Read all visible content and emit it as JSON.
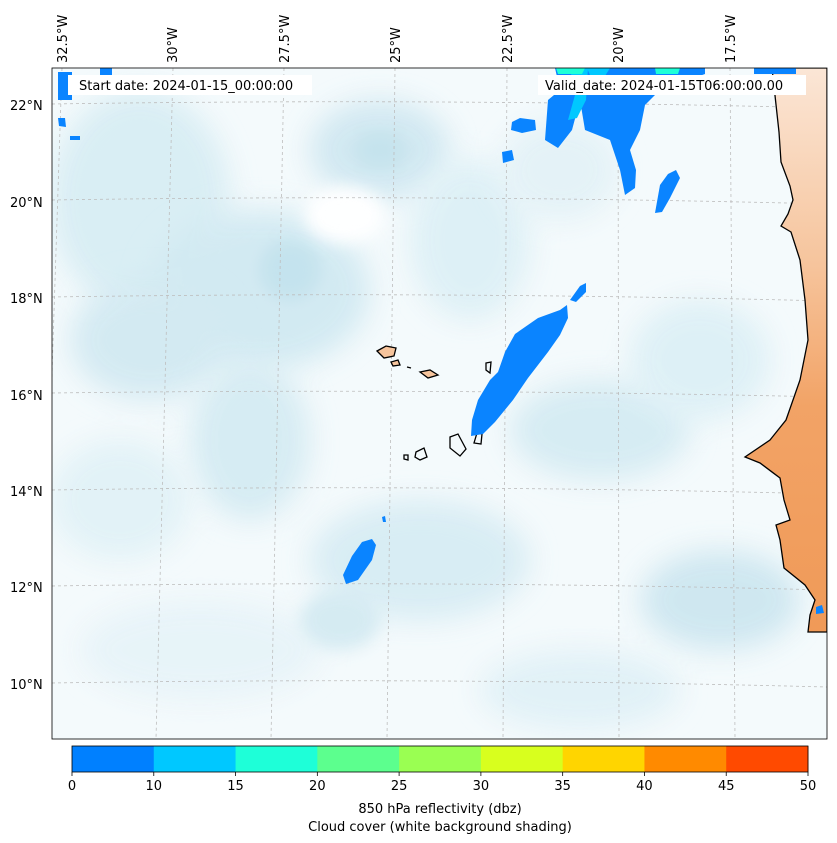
{
  "map": {
    "start_date_text": "Start date: 2024-01-15_00:00:00",
    "valid_date_text": "Valid_date: 2024-01-15T06:00:00.00",
    "lon_labels": [
      "32.5°W",
      "30°W",
      "27.5°W",
      "25°W",
      "22.5°W",
      "20°W",
      "17.5°W"
    ],
    "lat_labels": [
      "22°N",
      "20°N",
      "18°N",
      "16°N",
      "14°N",
      "12°N",
      "10°N"
    ]
  },
  "colorbar": {
    "ticks": [
      "0",
      "10",
      "15",
      "20",
      "25",
      "30",
      "35",
      "40",
      "45",
      "50"
    ],
    "colors": [
      "#0080ff",
      "#00c8ff",
      "#1effd8",
      "#5cff8e",
      "#9aff52",
      "#d8ff1e",
      "#ffd500",
      "#ff8a00",
      "#ff4a00"
    ],
    "label_line1": "850 hPa reflectivity (dbz)",
    "label_line2": "Cloud cover (white background shading)"
  },
  "style": {
    "land_color": "#f0a060",
    "precip_color": "#0a84ff",
    "cloud_color": "#cde7f0"
  }
}
